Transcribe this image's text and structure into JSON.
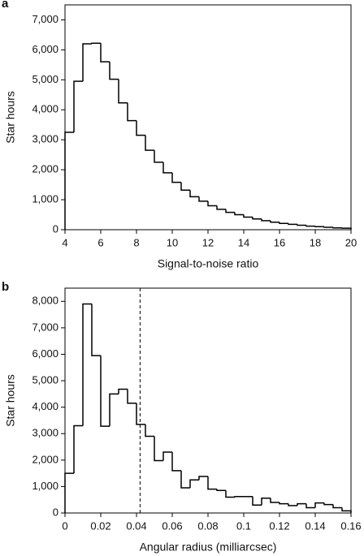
{
  "chart_data": [
    {
      "type": "histogram",
      "panel": "a",
      "xlabel": "Signal-to-noise ratio",
      "ylabel": "Star hours",
      "bins": [
        4,
        4.5,
        5,
        5.5,
        6,
        6.5,
        7,
        7.5,
        8,
        8.5,
        9,
        9.5,
        10,
        10.5,
        11,
        11.5,
        12,
        12.5,
        13,
        13.5,
        14,
        14.5,
        15,
        15.5,
        16,
        16.5,
        17,
        17.5,
        18,
        18.5,
        19,
        19.5,
        20
      ],
      "values": [
        3250,
        4950,
        6200,
        6220,
        5600,
        5020,
        4230,
        3640,
        3150,
        2650,
        2250,
        1900,
        1580,
        1320,
        1100,
        950,
        800,
        680,
        580,
        500,
        420,
        360,
        300,
        250,
        210,
        180,
        150,
        120,
        100,
        80,
        60,
        50
      ],
      "color": "#000000",
      "xlim": [
        4,
        20
      ],
      "xticks": [
        4,
        6,
        8,
        10,
        12,
        14,
        16,
        18,
        20
      ],
      "ylim": [
        0,
        7500
      ],
      "yticks": [
        0,
        {
          "value": 1000,
          "label": "1,000"
        },
        {
          "value": 2000,
          "label": "2,000"
        },
        {
          "value": 3000,
          "label": "3,000"
        },
        {
          "value": 4000,
          "label": "4,000"
        },
        {
          "value": 5000,
          "label": "5,000"
        },
        {
          "value": 6000,
          "label": "6,000"
        },
        {
          "value": 7000,
          "label": "7,000"
        }
      ]
    },
    {
      "type": "histogram",
      "panel": "b",
      "xlabel": "Angular radius (milliarcsec)",
      "ylabel": "Star hours",
      "bins": [
        0,
        0.005,
        0.01,
        0.015,
        0.02,
        0.025,
        0.03,
        0.035,
        0.04,
        0.045,
        0.05,
        0.055,
        0.06,
        0.065,
        0.07,
        0.075,
        0.08,
        0.085,
        0.09,
        0.095,
        0.1,
        0.105,
        0.11,
        0.115,
        0.12,
        0.125,
        0.13,
        0.135,
        0.14,
        0.145,
        0.15,
        0.155,
        0.16
      ],
      "values": [
        1500,
        3300,
        7900,
        5950,
        3280,
        4500,
        4680,
        4150,
        3350,
        2900,
        1980,
        2300,
        1600,
        950,
        1250,
        1380,
        900,
        850,
        600,
        620,
        620,
        300,
        560,
        400,
        350,
        280,
        350,
        200,
        380,
        320,
        200,
        80
      ],
      "color": "#000000",
      "reference_x": 0.042,
      "xlim": [
        0,
        0.16
      ],
      "xticks": [
        0,
        0.02,
        0.04,
        0.06,
        0.08,
        0.1,
        0.12,
        0.14,
        0.16
      ],
      "ylim": [
        0,
        8500
      ],
      "yticks": [
        0,
        {
          "value": 1000,
          "label": "1,000"
        },
        {
          "value": 2000,
          "label": "2,000"
        },
        {
          "value": 3000,
          "label": "3,000"
        },
        {
          "value": 4000,
          "label": "4,000"
        },
        {
          "value": 5000,
          "label": "5,000"
        },
        {
          "value": 6000,
          "label": "6,000"
        },
        {
          "value": 7000,
          "label": "7,000"
        },
        {
          "value": 8000,
          "label": "8,000"
        }
      ]
    }
  ]
}
